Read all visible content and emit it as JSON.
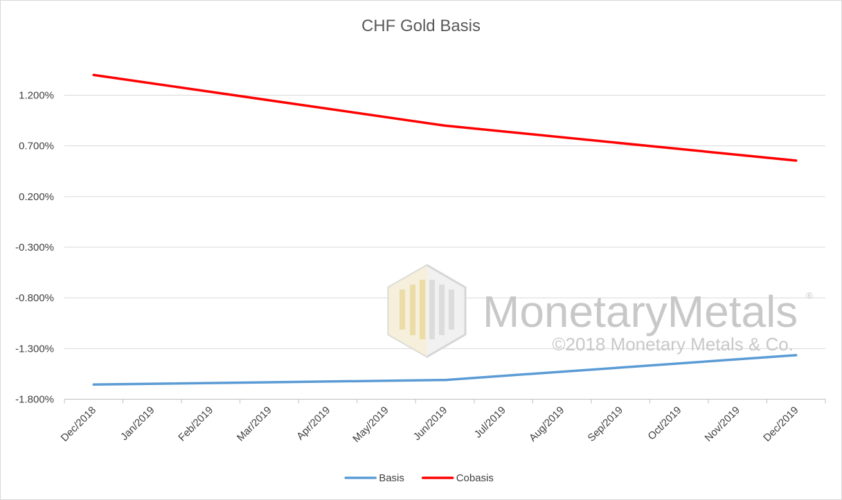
{
  "chart_data": {
    "type": "line",
    "title": "CHF Gold Basis",
    "categories": [
      "Dec/2018",
      "Jan/2019",
      "Feb/2019",
      "Mar/2019",
      "Apr/2019",
      "May/2019",
      "Jun/2019",
      "Jul/2019",
      "Aug/2019",
      "Sep/2019",
      "Oct/2019",
      "Nov/2019",
      "Dec/2019"
    ],
    "y_ticks": [
      "1.200%",
      "0.700%",
      "0.200%",
      "-0.300%",
      "-0.800%",
      "-1.300%",
      "-1.800%"
    ],
    "ylim": [
      -1.8,
      1.5
    ],
    "grid": true,
    "legend_position": "bottom",
    "series": [
      {
        "name": "Basis",
        "color": "#5b9bd5",
        "points": [
          {
            "x": "Dec/2018",
            "y": -1.655
          },
          {
            "x": "Jun/2019",
            "y": -1.61
          },
          {
            "x": "Dec/2019",
            "y": -1.365
          }
        ]
      },
      {
        "name": "Cobasis",
        "color": "#ff0000",
        "points": [
          {
            "x": "Dec/2018",
            "y": 1.4
          },
          {
            "x": "Jun/2019",
            "y": 0.9
          },
          {
            "x": "Dec/2019",
            "y": 0.555
          }
        ]
      }
    ]
  },
  "watermark": {
    "brand": "MonetaryMetals",
    "registered": "®",
    "copyright": "©2018 Monetary Metals & Co."
  }
}
